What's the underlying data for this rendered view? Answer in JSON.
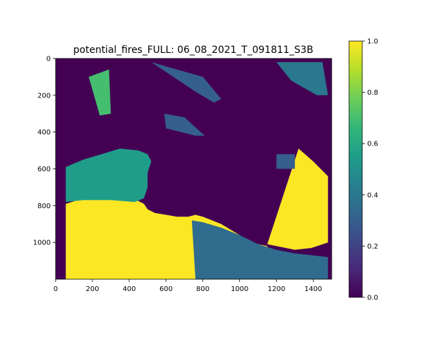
{
  "chart_data": {
    "type": "heatmap",
    "title": "potential_fires_FULL: 06_08_2021_T_091811_S3B",
    "xlabel": "",
    "ylabel": "",
    "xlim": [
      0,
      1500
    ],
    "ylim": [
      1200,
      0
    ],
    "x_ticks": [
      {
        "value": 0,
        "label": "0"
      },
      {
        "value": 200,
        "label": "200"
      },
      {
        "value": 400,
        "label": "400"
      },
      {
        "value": 600,
        "label": "600"
      },
      {
        "value": 800,
        "label": "800"
      },
      {
        "value": 1000,
        "label": "1000"
      },
      {
        "value": 1200,
        "label": "1200"
      },
      {
        "value": 1400,
        "label": "1400"
      }
    ],
    "y_ticks": [
      {
        "value": 0,
        "label": "0"
      },
      {
        "value": 200,
        "label": "200"
      },
      {
        "value": 400,
        "label": "400"
      },
      {
        "value": 600,
        "label": "600"
      },
      {
        "value": 800,
        "label": "800"
      },
      {
        "value": 1000,
        "label": "1000"
      }
    ],
    "colorbar": {
      "colormap": "viridis",
      "range": [
        0.0,
        1.0
      ],
      "ticks": [
        {
          "value": 0.0,
          "label": "0.0"
        },
        {
          "value": 0.2,
          "label": "0.2"
        },
        {
          "value": 0.4,
          "label": "0.4"
        },
        {
          "value": 0.6,
          "label": "0.6"
        },
        {
          "value": 0.8,
          "label": "0.8"
        },
        {
          "value": 1.0,
          "label": "1.0"
        }
      ],
      "stops": [
        "#440154",
        "#482878",
        "#3e4989",
        "#31688e",
        "#26828e",
        "#1f9e89",
        "#35b779",
        "#6ece58",
        "#b5de2b",
        "#fde725"
      ]
    },
    "regions": [
      {
        "name": "large-high-region-southwest",
        "value": 1.0,
        "polygon": [
          [
            55,
            790
          ],
          [
            120,
            770
          ],
          [
            200,
            760
          ],
          [
            300,
            760
          ],
          [
            400,
            760
          ],
          [
            440,
            770
          ],
          [
            480,
            790
          ],
          [
            500,
            820
          ],
          [
            540,
            840
          ],
          [
            600,
            850
          ],
          [
            660,
            860
          ],
          [
            720,
            860
          ],
          [
            760,
            850
          ],
          [
            800,
            860
          ],
          [
            850,
            880
          ],
          [
            900,
            900
          ],
          [
            950,
            930
          ],
          [
            1000,
            960
          ],
          [
            1050,
            990
          ],
          [
            1100,
            1010
          ],
          [
            1150,
            1020
          ],
          [
            1150,
            1200
          ],
          [
            55,
            1200
          ]
        ]
      },
      {
        "name": "high-swath-east",
        "value": 1.0,
        "polygon": [
          [
            1320,
            490
          ],
          [
            1400,
            560
          ],
          [
            1480,
            640
          ],
          [
            1480,
            1000
          ],
          [
            1390,
            1030
          ],
          [
            1300,
            1040
          ],
          [
            1150,
            1010
          ]
        ]
      },
      {
        "name": "mixed-land-northwest-coast",
        "value": 0.55,
        "polygon": [
          [
            55,
            590
          ],
          [
            150,
            550
          ],
          [
            250,
            520
          ],
          [
            350,
            490
          ],
          [
            450,
            500
          ],
          [
            500,
            520
          ],
          [
            520,
            560
          ],
          [
            500,
            620
          ],
          [
            500,
            700
          ],
          [
            480,
            760
          ],
          [
            430,
            780
          ],
          [
            300,
            770
          ],
          [
            150,
            770
          ],
          [
            55,
            780
          ]
        ]
      },
      {
        "name": "mixed-land-southeast-coast",
        "value": 0.35,
        "polygon": [
          [
            740,
            880
          ],
          [
            800,
            890
          ],
          [
            900,
            920
          ],
          [
            1000,
            960
          ],
          [
            1100,
            1010
          ],
          [
            1200,
            1040
          ],
          [
            1300,
            1060
          ],
          [
            1400,
            1070
          ],
          [
            1480,
            1080
          ],
          [
            1480,
            1200
          ],
          [
            1150,
            1200
          ],
          [
            900,
            1200
          ],
          [
            760,
            1200
          ]
        ]
      },
      {
        "name": "island-north-left",
        "value": 0.7,
        "polygon": [
          [
            180,
            100
          ],
          [
            290,
            60
          ],
          [
            300,
            300
          ],
          [
            240,
            310
          ]
        ]
      },
      {
        "name": "coast-north",
        "value": 0.3,
        "polygon": [
          [
            520,
            20
          ],
          [
            800,
            100
          ],
          [
            900,
            220
          ],
          [
            860,
            240
          ],
          [
            760,
            180
          ]
        ]
      },
      {
        "name": "coast-mid",
        "value": 0.3,
        "polygon": [
          [
            590,
            300
          ],
          [
            700,
            320
          ],
          [
            810,
            420
          ],
          [
            760,
            420
          ],
          [
            600,
            380
          ]
        ]
      },
      {
        "name": "coast-northeast",
        "value": 0.4,
        "polygon": [
          [
            1200,
            20
          ],
          [
            1450,
            20
          ],
          [
            1480,
            200
          ],
          [
            1420,
            200
          ],
          [
            1280,
            120
          ]
        ]
      },
      {
        "name": "speckle-east",
        "value": 0.3,
        "polygon": [
          [
            1200,
            520
          ],
          [
            1300,
            520
          ],
          [
            1300,
            600
          ],
          [
            1200,
            600
          ]
        ]
      }
    ]
  }
}
